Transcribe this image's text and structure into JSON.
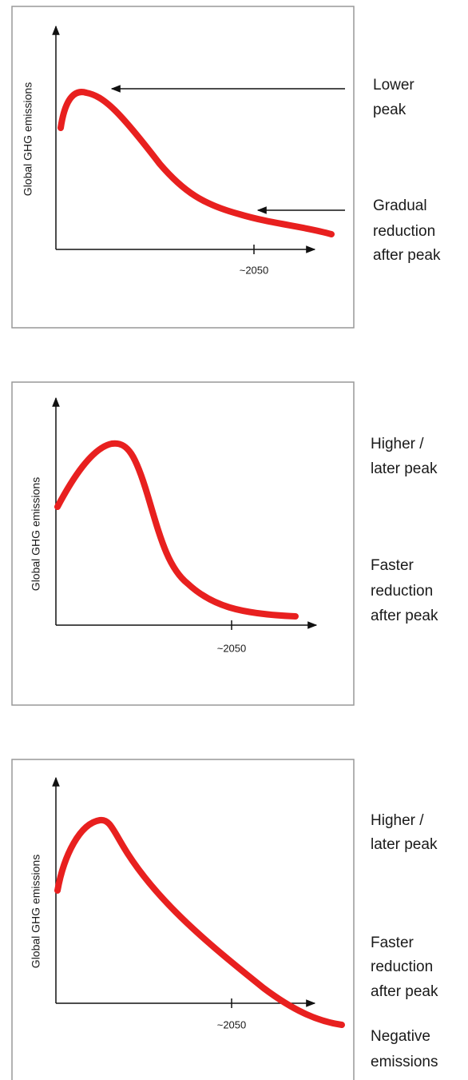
{
  "panels": [
    {
      "y_label": "Global GHG emissions",
      "x_tick": "~2050",
      "annotations": [
        [
          "Lower",
          "peak"
        ],
        [
          "Gradual",
          "reduction",
          "after peak"
        ]
      ]
    },
    {
      "y_label": "Global GHG emissions",
      "x_tick": "~2050",
      "annotations": [
        [
          "Higher /",
          "later peak"
        ],
        [
          "Faster",
          "reduction",
          "after peak"
        ]
      ]
    },
    {
      "y_label": "Global GHG emissions",
      "x_tick": "~2050",
      "annotations": [
        [
          "Higher /",
          "later peak"
        ],
        [
          "Faster",
          "reduction",
          "after peak"
        ],
        [
          "Negative",
          "emissions"
        ]
      ]
    }
  ]
}
